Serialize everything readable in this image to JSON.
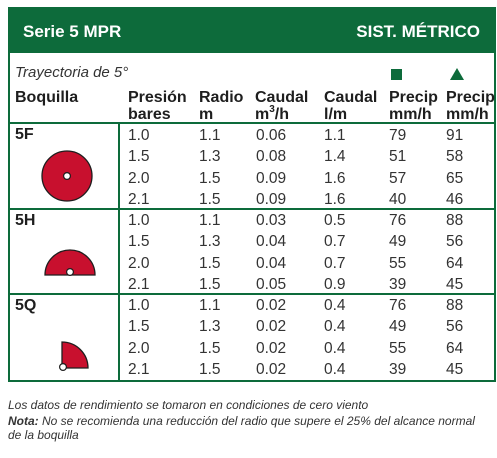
{
  "header": {
    "title": "Serie 5 MPR",
    "system": "SIST. MÉTRICO"
  },
  "subtitle": "Trayectoria de 5°",
  "columns": {
    "nozzle": "Boquilla",
    "pressure": [
      "Presión",
      "bares"
    ],
    "radius": [
      "Radio",
      "m"
    ],
    "flow_m3": [
      "Caudal",
      "m",
      "3",
      "/h"
    ],
    "flow_lm": [
      "Caudal",
      "l/m"
    ],
    "precip_square": [
      "Precip",
      "mm/h"
    ],
    "precip_triangle": [
      "Precip",
      "mm/h"
    ]
  },
  "symbols": {
    "square": "square-spacing-icon",
    "triangle": "triangle-spacing-icon"
  },
  "colors": {
    "green": "#0d6b3b",
    "red": "#c8102e"
  },
  "groups": [
    {
      "label": "5F",
      "icon": "full-circle-pattern-icon",
      "rows": [
        [
          "1.0",
          "1.1",
          "0.06",
          "1.1",
          "79",
          "91"
        ],
        [
          "1.5",
          "1.3",
          "0.08",
          "1.4",
          "51",
          "58"
        ],
        [
          "2.0",
          "1.5",
          "0.09",
          "1.6",
          "57",
          "65"
        ],
        [
          "2.1",
          "1.5",
          "0.09",
          "1.6",
          "40",
          "46"
        ]
      ]
    },
    {
      "label": "5H",
      "icon": "half-circle-pattern-icon",
      "rows": [
        [
          "1.0",
          "1.1",
          "0.03",
          "0.5",
          "76",
          "88"
        ],
        [
          "1.5",
          "1.3",
          "0.04",
          "0.7",
          "49",
          "56"
        ],
        [
          "2.0",
          "1.5",
          "0.04",
          "0.7",
          "55",
          "64"
        ],
        [
          "2.1",
          "1.5",
          "0.05",
          "0.9",
          "39",
          "45"
        ]
      ]
    },
    {
      "label": "5Q",
      "icon": "quarter-circle-pattern-icon",
      "rows": [
        [
          "1.0",
          "1.1",
          "0.02",
          "0.4",
          "76",
          "88"
        ],
        [
          "1.5",
          "1.3",
          "0.02",
          "0.4",
          "49",
          "56"
        ],
        [
          "2.0",
          "1.5",
          "0.02",
          "0.4",
          "55",
          "64"
        ],
        [
          "2.1",
          "1.5",
          "0.02",
          "0.4",
          "39",
          "45"
        ]
      ]
    }
  ],
  "footer": {
    "line1": "Los datos de rendimiento se tomaron en condiciones de cero viento",
    "note_label": "Nota:",
    "note_text": " No se recomienda una reducción del radio que supere el 25% del alcance normal",
    "note_text2": "de la boquilla"
  }
}
